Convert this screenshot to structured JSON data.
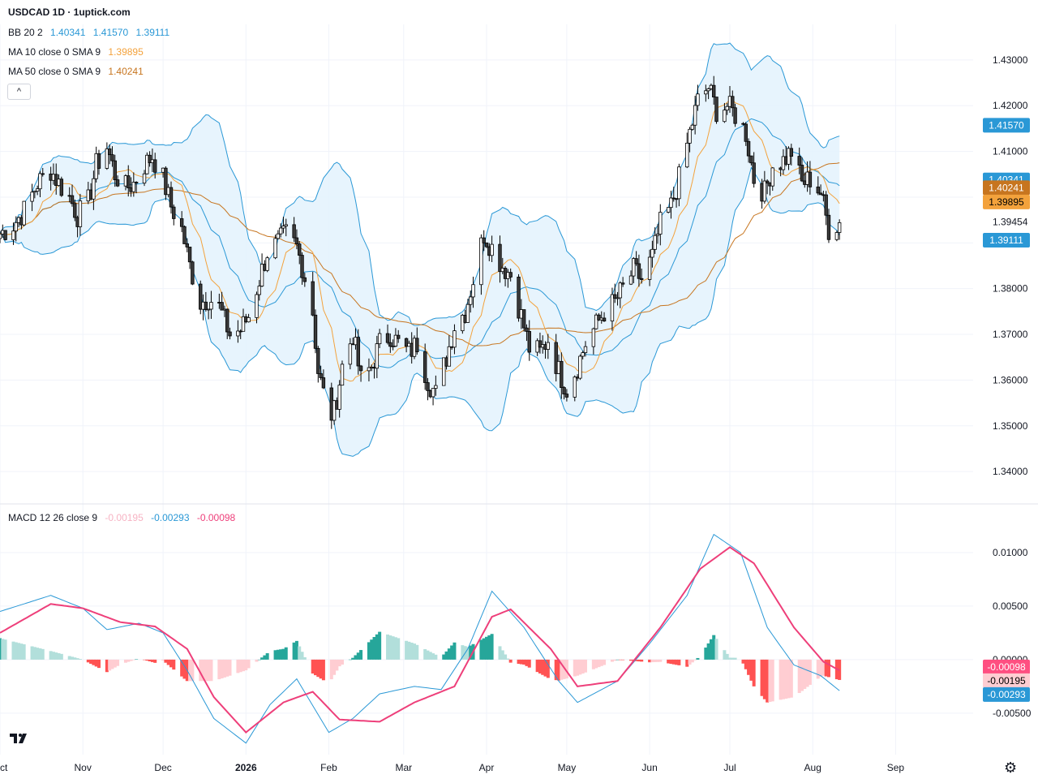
{
  "header": {
    "title": "USDCAD 1D · 1uptick.com",
    "bb": {
      "label": "BB 20 2",
      "basis": "1.40341",
      "upper": "1.41570",
      "lower": "1.39111"
    },
    "ma10": {
      "label": "MA 10 close 0 SMA 9",
      "value": "1.39895"
    },
    "ma50": {
      "label": "MA 50 close 0 SMA 9",
      "value": "1.40241"
    },
    "collapse_glyph": "^"
  },
  "macd_header": {
    "label": "MACD 12 26 close 9",
    "hist": "-0.00195",
    "macd": "-0.00293",
    "signal": "-0.00098"
  },
  "price_tags": {
    "upper": "1.41570",
    "basis": "1.40341",
    "ma50": "1.40241",
    "ma10": "1.39895",
    "last": "1.39454",
    "lower": "1.39111"
  },
  "macd_tags": {
    "signal": "-0.00098",
    "hist": "-0.00195",
    "macd": "-0.00293"
  },
  "colors": {
    "up": "#ffffff",
    "down": "#3a3a3a",
    "wick": "#000000",
    "bb_line": "#2a98d6",
    "bb_fill": "#e3f2fd",
    "ma10": "#f3a23c",
    "ma50": "#c7751f",
    "macd_line": "#2a98d6",
    "signal_line": "#ee3f7a",
    "hist_pos_strong": "#26a69a",
    "hist_pos_weak": "#b2dfdb",
    "hist_neg_strong": "#ff5252",
    "hist_neg_weak": "#ffcdd2"
  },
  "chart_data": {
    "type": "candlestick",
    "symbol": "USDCAD",
    "timeframe": "1D",
    "y_range": [
      1.334,
      1.436
    ],
    "y_ticks": [
      "1.43000",
      "1.42000",
      "1.41000",
      "1.40000",
      "1.39000",
      "1.38000",
      "1.37000",
      "1.36000",
      "1.35000",
      "1.34000"
    ],
    "months": [
      {
        "label": "Oct",
        "date": "2025-10-01"
      },
      {
        "label": "Nov",
        "date": "2025-11-01"
      },
      {
        "label": "Dec",
        "date": "2025-12-01"
      },
      {
        "label": "2026",
        "date": "2026-01-01"
      },
      {
        "label": "Feb",
        "date": "2026-02-01"
      },
      {
        "label": "Mar",
        "date": "2026-03-01"
      },
      {
        "label": "Apr",
        "date": "2026-04-01"
      },
      {
        "label": "May",
        "date": "2026-05-01"
      },
      {
        "label": "Jun",
        "date": "2026-06-01"
      },
      {
        "label": "Jul",
        "date": "2026-07-01"
      },
      {
        "label": "Aug",
        "date": "2026-08-01"
      },
      {
        "label": "Sep",
        "date": "2026-09-01"
      }
    ],
    "x_range_dates": [
      "2025-10-01",
      "2026-09-30"
    ],
    "close_path": [
      [
        "2025-10-01",
        1.392
      ],
      [
        "2025-10-06",
        1.394
      ],
      [
        "2025-10-10",
        1.397
      ],
      [
        "2025-10-15",
        1.403
      ],
      [
        "2025-10-20",
        1.406
      ],
      [
        "2025-10-23",
        1.403
      ],
      [
        "2025-10-27",
        1.4
      ],
      [
        "2025-10-30",
        1.396
      ],
      [
        "2025-11-03",
        1.399
      ],
      [
        "2025-11-06",
        1.407
      ],
      [
        "2025-11-10",
        1.411
      ],
      [
        "2025-11-13",
        1.405
      ],
      [
        "2025-11-17",
        1.402
      ],
      [
        "2025-11-20",
        1.403
      ],
      [
        "2025-11-24",
        1.407
      ],
      [
        "2025-11-27",
        1.409
      ],
      [
        "2025-12-01",
        1.404
      ],
      [
        "2025-12-04",
        1.398
      ],
      [
        "2025-12-08",
        1.393
      ],
      [
        "2025-12-11",
        1.385
      ],
      [
        "2025-12-15",
        1.377
      ],
      [
        "2025-12-18",
        1.378
      ],
      [
        "2025-12-22",
        1.376
      ],
      [
        "2025-12-26",
        1.37
      ],
      [
        "2025-12-30",
        1.371
      ],
      [
        "2026-01-02",
        1.374
      ],
      [
        "2026-01-06",
        1.382
      ],
      [
        "2026-01-09",
        1.388
      ],
      [
        "2026-01-13",
        1.39
      ],
      [
        "2026-01-16",
        1.392
      ],
      [
        "2026-01-20",
        1.389
      ],
      [
        "2026-01-22",
        1.385
      ],
      [
        "2026-01-26",
        1.375
      ],
      [
        "2026-01-28",
        1.362
      ],
      [
        "2026-02-01",
        1.352
      ],
      [
        "2026-02-03",
        1.353
      ],
      [
        "2026-02-06",
        1.363
      ],
      [
        "2026-02-10",
        1.37
      ],
      [
        "2026-02-13",
        1.36
      ],
      [
        "2026-02-17",
        1.363
      ],
      [
        "2026-02-20",
        1.368
      ],
      [
        "2026-02-24",
        1.37
      ],
      [
        "2026-02-27",
        1.368
      ],
      [
        "2026-03-03",
        1.366
      ],
      [
        "2026-03-06",
        1.368
      ],
      [
        "2026-03-10",
        1.36
      ],
      [
        "2026-03-13",
        1.357
      ],
      [
        "2026-03-17",
        1.365
      ],
      [
        "2026-03-20",
        1.372
      ],
      [
        "2026-03-24",
        1.375
      ],
      [
        "2026-03-27",
        1.382
      ],
      [
        "2026-03-31",
        1.392
      ],
      [
        "2026-04-03",
        1.389
      ],
      [
        "2026-04-07",
        1.385
      ],
      [
        "2026-04-10",
        1.383
      ],
      [
        "2026-04-14",
        1.374
      ],
      [
        "2026-04-17",
        1.367
      ],
      [
        "2026-04-21",
        1.366
      ],
      [
        "2026-04-24",
        1.369
      ],
      [
        "2026-04-28",
        1.362
      ],
      [
        "2026-05-01",
        1.358
      ],
      [
        "2026-05-05",
        1.363
      ],
      [
        "2026-05-08",
        1.368
      ],
      [
        "2026-05-12",
        1.372
      ],
      [
        "2026-05-15",
        1.375
      ],
      [
        "2026-05-19",
        1.377
      ],
      [
        "2026-05-22",
        1.38
      ],
      [
        "2026-05-26",
        1.384
      ],
      [
        "2026-05-29",
        1.382
      ],
      [
        "2026-06-02",
        1.387
      ],
      [
        "2026-06-05",
        1.394
      ],
      [
        "2026-06-09",
        1.398
      ],
      [
        "2026-06-12",
        1.404
      ],
      [
        "2026-06-16",
        1.414
      ],
      [
        "2026-06-19",
        1.421
      ],
      [
        "2026-06-23",
        1.424
      ],
      [
        "2026-06-26",
        1.419
      ],
      [
        "2026-06-30",
        1.42
      ],
      [
        "2026-07-03",
        1.418
      ],
      [
        "2026-07-07",
        1.414
      ],
      [
        "2026-07-10",
        1.404
      ],
      [
        "2026-07-14",
        1.401
      ],
      [
        "2026-07-17",
        1.407
      ],
      [
        "2026-07-21",
        1.408
      ],
      [
        "2026-07-24",
        1.41
      ],
      [
        "2026-07-28",
        1.403
      ],
      [
        "2026-07-31",
        1.404
      ],
      [
        "2026-08-04",
        1.401
      ],
      [
        "2026-08-07",
        1.393
      ],
      [
        "2026-08-11",
        1.3945
      ]
    ],
    "macd": {
      "y_range": [
        -0.0085,
        0.0125
      ],
      "y_ticks": [
        "0.01000",
        "0.00500",
        "0.00000",
        "-0.00500"
      ],
      "macd_path": [
        [
          "2025-10-01",
          0.0045
        ],
        [
          "2025-10-20",
          0.006
        ],
        [
          "2025-11-01",
          0.0048
        ],
        [
          "2025-11-10",
          0.0028
        ],
        [
          "2025-11-22",
          0.0034
        ],
        [
          "2025-12-01",
          0.0025
        ],
        [
          "2025-12-10",
          -0.001
        ],
        [
          "2025-12-20",
          -0.0055
        ],
        [
          "2026-01-01",
          -0.0078
        ],
        [
          "2026-01-10",
          -0.0042
        ],
        [
          "2026-01-20",
          -0.0018
        ],
        [
          "2026-02-01",
          -0.0068
        ],
        [
          "2026-02-10",
          -0.0055
        ],
        [
          "2026-02-20",
          -0.0032
        ],
        [
          "2026-03-05",
          -0.0025
        ],
        [
          "2026-03-15",
          -0.0028
        ],
        [
          "2026-03-25",
          0.001
        ],
        [
          "2026-04-03",
          0.0064
        ],
        [
          "2026-04-15",
          0.003
        ],
        [
          "2026-04-28",
          -0.002
        ],
        [
          "2026-05-05",
          -0.004
        ],
        [
          "2026-05-20",
          -0.002
        ],
        [
          "2026-06-01",
          0.0015
        ],
        [
          "2026-06-15",
          0.006
        ],
        [
          "2026-06-25",
          0.0117
        ],
        [
          "2026-07-05",
          0.01
        ],
        [
          "2026-07-15",
          0.003
        ],
        [
          "2026-07-25",
          -0.0005
        ],
        [
          "2026-08-04",
          -0.0015
        ],
        [
          "2026-08-11",
          -0.0029
        ]
      ],
      "signal_path": [
        [
          "2025-10-01",
          0.0025
        ],
        [
          "2025-10-20",
          0.0052
        ],
        [
          "2025-11-01",
          0.0048
        ],
        [
          "2025-11-15",
          0.0035
        ],
        [
          "2025-11-28",
          0.0031
        ],
        [
          "2025-12-10",
          0.001
        ],
        [
          "2025-12-20",
          -0.0035
        ],
        [
          "2026-01-01",
          -0.0068
        ],
        [
          "2026-01-15",
          -0.004
        ],
        [
          "2026-01-26",
          -0.003
        ],
        [
          "2026-02-05",
          -0.0056
        ],
        [
          "2026-02-20",
          -0.0058
        ],
        [
          "2026-03-05",
          -0.004
        ],
        [
          "2026-03-20",
          -0.0025
        ],
        [
          "2026-04-03",
          0.004
        ],
        [
          "2026-04-10",
          0.0047
        ],
        [
          "2026-04-25",
          0.001
        ],
        [
          "2026-05-05",
          -0.0025
        ],
        [
          "2026-05-20",
          -0.002
        ],
        [
          "2026-06-05",
          0.003
        ],
        [
          "2026-06-20",
          0.0085
        ],
        [
          "2026-07-01",
          0.0105
        ],
        [
          "2026-07-10",
          0.009
        ],
        [
          "2026-07-25",
          0.003
        ],
        [
          "2026-08-05",
          -0.0002
        ],
        [
          "2026-08-11",
          -0.001
        ]
      ]
    }
  }
}
